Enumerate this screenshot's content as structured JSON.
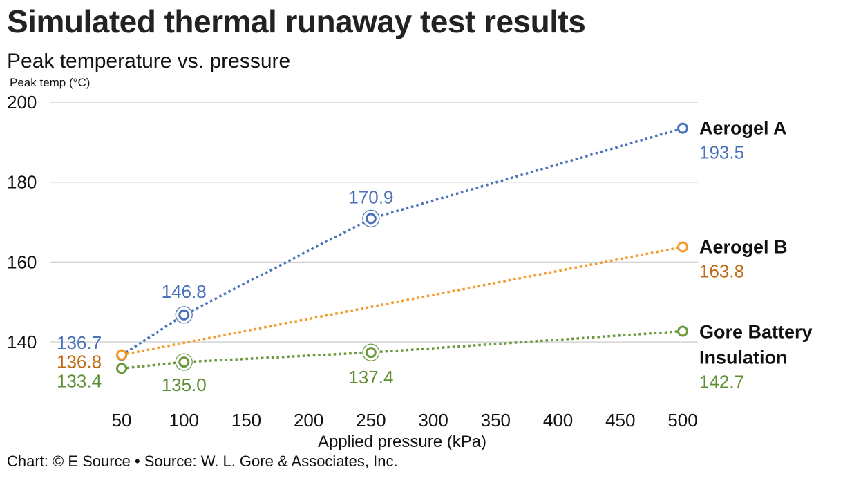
{
  "title": "Simulated thermal runaway test results",
  "subtitle": "Peak temperature vs. pressure",
  "source": "Chart: © E Source • Source: W. L. Gore & Associates, Inc.",
  "chart_data": {
    "type": "line",
    "ylabel": "Peak temp (°C)",
    "xlabel": "Applied pressure (kPa)",
    "xlim": [
      50,
      500
    ],
    "ylim": [
      130,
      200
    ],
    "xticks": [
      50,
      100,
      150,
      200,
      250,
      300,
      350,
      400,
      450,
      500
    ],
    "yticks": [
      140,
      160,
      180,
      200
    ],
    "grid": true,
    "series": [
      {
        "name": "Aerogel A",
        "color": "#4a72b8",
        "label_color": "#4a72b8",
        "points": [
          {
            "x": 50,
            "y": 136.7,
            "label": "136.7"
          },
          {
            "x": 100,
            "y": 146.8,
            "label": "146.8"
          },
          {
            "x": 250,
            "y": 170.9,
            "label": "170.9"
          },
          {
            "x": 500,
            "y": 193.5,
            "label": "193.5"
          }
        ]
      },
      {
        "name": "Aerogel B",
        "color": "#f39a2b",
        "label_color": "#c06b14",
        "points": [
          {
            "x": 50,
            "y": 136.8,
            "label": "136.8"
          },
          {
            "x": 500,
            "y": 163.8,
            "label": "163.8"
          }
        ]
      },
      {
        "name": "Gore Battery Insulation",
        "name_lines": [
          "Gore Battery",
          "Insulation"
        ],
        "color": "#6a9a3e",
        "label_color": "#5e8f33",
        "points": [
          {
            "x": 50,
            "y": 133.4,
            "label": "133.4"
          },
          {
            "x": 100,
            "y": 135.0,
            "label": "135.0"
          },
          {
            "x": 250,
            "y": 137.4,
            "label": "137.4"
          },
          {
            "x": 500,
            "y": 142.7,
            "label": "142.7"
          }
        ]
      }
    ]
  }
}
